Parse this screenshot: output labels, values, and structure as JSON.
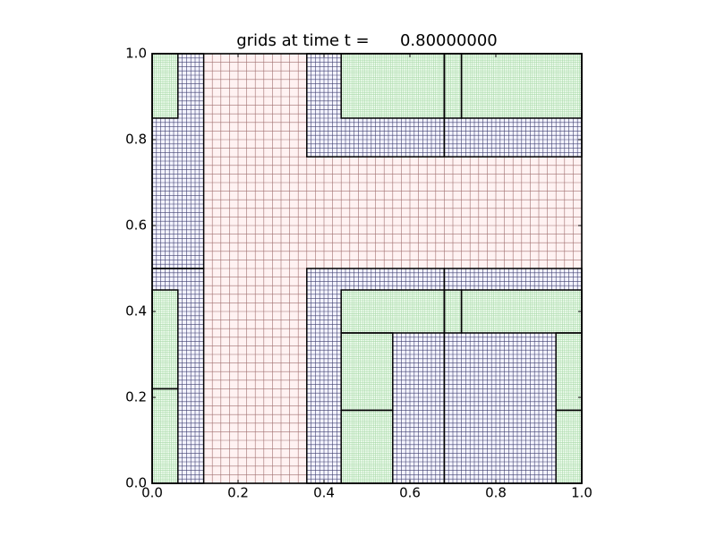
{
  "chart_data": {
    "type": "amr-grid",
    "title": "grids at time t =      0.80000000",
    "xlim": [
      0,
      1
    ],
    "ylim": [
      0,
      1
    ],
    "xticks": [
      {
        "value": 0,
        "label": "0.0"
      },
      {
        "value": 0.2,
        "label": "0.2"
      },
      {
        "value": 0.4,
        "label": "0.4"
      },
      {
        "value": 0.6,
        "label": "0.6"
      },
      {
        "value": 0.8,
        "label": "0.8"
      },
      {
        "value": 1,
        "label": "1.0"
      }
    ],
    "yticks": [
      {
        "value": 0,
        "label": "0.0"
      },
      {
        "value": 0.2,
        "label": "0.2"
      },
      {
        "value": 0.4,
        "label": "0.4"
      },
      {
        "value": 0.6,
        "label": "0.6"
      },
      {
        "value": 0.8,
        "label": "0.8"
      },
      {
        "value": 1,
        "label": "1.0"
      }
    ],
    "levels": [
      {
        "fill": "#fff2f2",
        "line_color": "#a07070",
        "spacing": 0.02
      },
      {
        "fill": "#f4f4ff",
        "line_color": "#404070",
        "spacing": 0.01
      },
      {
        "fill": "#f4fff4",
        "line_color": "#a8d8a8",
        "spacing": 0.005
      }
    ],
    "patches": [
      {
        "level": 1,
        "x": [
          0,
          1
        ],
        "y": [
          0,
          1
        ]
      },
      {
        "level": 2,
        "x": [
          0,
          0.12
        ],
        "y": [
          0,
          0.5
        ]
      },
      {
        "level": 2,
        "x": [
          0,
          0.12
        ],
        "y": [
          0.5,
          1
        ]
      },
      {
        "level": 2,
        "x": [
          0.36,
          0.68
        ],
        "y": [
          0.76,
          1
        ]
      },
      {
        "level": 2,
        "x": [
          0.68,
          1
        ],
        "y": [
          0.76,
          1
        ]
      },
      {
        "level": 2,
        "x": [
          0.36,
          0.68
        ],
        "y": [
          0,
          0.5
        ]
      },
      {
        "level": 2,
        "x": [
          0.68,
          1
        ],
        "y": [
          0,
          0.5
        ]
      },
      {
        "level": 3,
        "x": [
          0,
          0.06
        ],
        "y": [
          0.85,
          1
        ]
      },
      {
        "level": 3,
        "x": [
          0.44,
          0.68
        ],
        "y": [
          0.85,
          1
        ]
      },
      {
        "level": 3,
        "x": [
          0.68,
          0.72
        ],
        "y": [
          0.85,
          1
        ]
      },
      {
        "level": 3,
        "x": [
          0.72,
          1
        ],
        "y": [
          0.85,
          1
        ]
      },
      {
        "level": 3,
        "x": [
          0,
          0.06
        ],
        "y": [
          0,
          0.22
        ]
      },
      {
        "level": 3,
        "x": [
          0,
          0.06
        ],
        "y": [
          0.22,
          0.45
        ]
      },
      {
        "level": 3,
        "x": [
          0.44,
          0.68
        ],
        "y": [
          0.35,
          0.45
        ]
      },
      {
        "level": 3,
        "x": [
          0.68,
          0.72
        ],
        "y": [
          0.35,
          0.45
        ]
      },
      {
        "level": 3,
        "x": [
          0.72,
          1
        ],
        "y": [
          0.35,
          0.45
        ]
      },
      {
        "level": 3,
        "x": [
          0.44,
          0.56
        ],
        "y": [
          0.17,
          0.35
        ]
      },
      {
        "level": 3,
        "x": [
          0.44,
          0.56
        ],
        "y": [
          0,
          0.17
        ]
      },
      {
        "level": 3,
        "x": [
          0.94,
          1
        ],
        "y": [
          0.17,
          0.35
        ]
      },
      {
        "level": 3,
        "x": [
          0.94,
          1
        ],
        "y": [
          0,
          0.17
        ]
      }
    ]
  }
}
